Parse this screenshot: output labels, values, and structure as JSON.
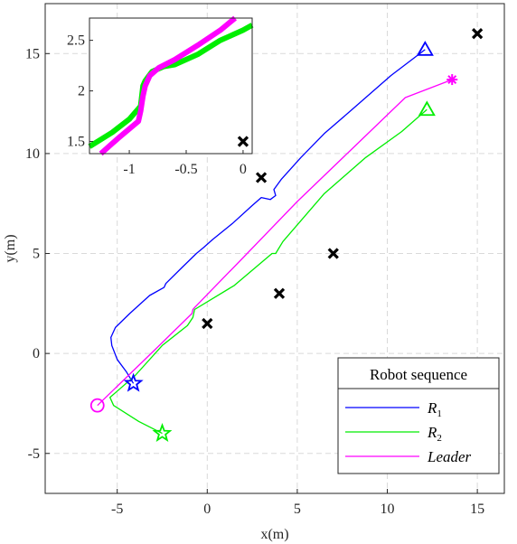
{
  "chart_data": [
    {
      "type": "line",
      "title": "",
      "xlabel": "x(m)",
      "ylabel": "y(m)",
      "xlim": [
        -9,
        16.5
      ],
      "ylim": [
        -7,
        17.5
      ],
      "xticks": [
        -5,
        0,
        5,
        10,
        15
      ],
      "yticks": [
        -5,
        0,
        5,
        10,
        15
      ],
      "xtick_labels": [
        "-5",
        "0",
        "5",
        "10",
        "15"
      ],
      "ytick_labels": [
        "-5",
        "0",
        "5",
        "10",
        "15"
      ],
      "grid": true,
      "legend": {
        "title": "Robot sequence",
        "placement": "bottom-right"
      },
      "series": [
        {
          "name": "R",
          "subscript": "1",
          "color": "#0000ff",
          "marker_start": "star",
          "marker_end": "triangle",
          "x": [
            -4.1,
            -4.5,
            -5.0,
            -5.3,
            -5.35,
            -5.1,
            -4.3,
            -3.2,
            -2.4,
            -2.3,
            -1.4,
            -0.6,
            -0.2,
            0.3,
            1.4,
            2.5,
            3.0,
            3.5,
            3.8,
            3.7,
            4.1,
            5.2,
            6.5,
            8.3,
            10.2,
            12.1
          ],
          "y": [
            -1.5,
            -0.9,
            -0.3,
            0.4,
            0.8,
            1.3,
            2.0,
            2.9,
            3.3,
            3.5,
            4.3,
            5.0,
            5.3,
            5.7,
            6.5,
            7.4,
            7.8,
            7.7,
            7.9,
            8.2,
            8.7,
            9.8,
            11.0,
            12.4,
            13.9,
            15.2
          ]
        },
        {
          "name": "R",
          "subscript": "2",
          "color": "#00ee00",
          "marker_start": "star",
          "marker_end": "triangle",
          "x": [
            -2.5,
            -3.8,
            -5.2,
            -5.4,
            -4.0,
            -2.5,
            -1.1,
            -0.8,
            -0.7,
            1.5,
            3.6,
            3.8,
            4.2,
            6.5,
            8.8,
            10.8,
            12.2
          ],
          "y": [
            -4.0,
            -3.4,
            -2.6,
            -2.2,
            -1.1,
            0.4,
            1.4,
            1.8,
            2.2,
            3.4,
            5.0,
            5.0,
            5.6,
            8.0,
            9.8,
            11.1,
            12.2
          ]
        },
        {
          "name": "Leader",
          "color": "#ff00ff",
          "marker_start": "circle",
          "marker_end": "asterisk",
          "x": [
            -6.1,
            -3.0,
            -0.85,
            -0.8,
            -0.7,
            2.0,
            5.0,
            8.0,
            11.0,
            13.6
          ],
          "y": [
            -2.6,
            0.1,
            2.0,
            2.2,
            2.3,
            4.8,
            7.6,
            10.2,
            12.8,
            13.7
          ]
        }
      ],
      "obstacles": {
        "marker": "x",
        "color": "#000000",
        "points": [
          [
            0,
            1.5
          ],
          [
            3,
            8.8
          ],
          [
            4,
            3.0
          ],
          [
            7,
            5.0
          ],
          [
            15,
            16.0
          ]
        ]
      }
    },
    {
      "type": "line",
      "title": "",
      "placement": "inset-top-left",
      "xlim": [
        -1.35,
        0.08
      ],
      "ylim": [
        1.38,
        2.72
      ],
      "xticks": [
        -1,
        -0.5,
        0
      ],
      "yticks": [
        1.5,
        2,
        2.5
      ],
      "xtick_labels": [
        "-1",
        "-0.5",
        "0"
      ],
      "ytick_labels": [
        "1.5",
        "2",
        "2.5"
      ],
      "grid": false,
      "series": [
        {
          "name": "R",
          "subscript": "2",
          "color": "#00ee00",
          "x": [
            -1.35,
            -1.15,
            -1.0,
            -0.9,
            -0.88,
            -0.86,
            -0.8,
            -0.7,
            -0.6,
            -0.4,
            -0.2,
            0.0,
            0.08
          ],
          "y": [
            1.45,
            1.59,
            1.72,
            1.85,
            2.05,
            2.1,
            2.19,
            2.24,
            2.26,
            2.36,
            2.5,
            2.6,
            2.65
          ]
        },
        {
          "name": "Leader",
          "color": "#ff00ff",
          "x": [
            -1.25,
            -1.1,
            -0.92,
            -0.9,
            -0.88,
            -0.86,
            -0.82,
            -0.74,
            -0.6,
            -0.4,
            -0.2,
            -0.07
          ],
          "y": [
            1.38,
            1.53,
            1.7,
            1.8,
            1.95,
            2.05,
            2.15,
            2.23,
            2.31,
            2.45,
            2.6,
            2.72
          ]
        }
      ],
      "obstacles": {
        "marker": "x",
        "color": "#000000",
        "points": [
          [
            0,
            1.5
          ]
        ]
      }
    }
  ]
}
